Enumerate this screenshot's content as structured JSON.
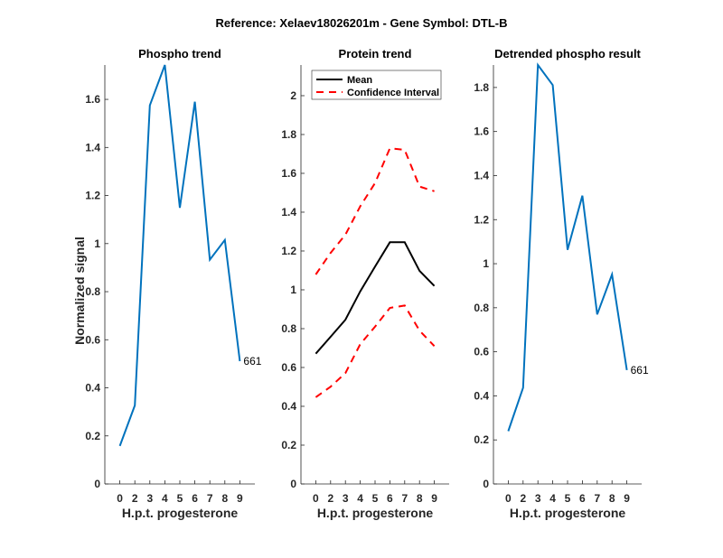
{
  "figure": {
    "suptitle": "Reference:  Xelaev18026201m - Gene Symbol:  DTL-B"
  },
  "colors": {
    "phospho_line": "#0072BD",
    "mean_line": "#000000",
    "ci_line": "#FF0000",
    "axis": "#262626"
  },
  "chart_data": [
    {
      "type": "line",
      "title": "Phospho trend",
      "xlabel": "H.p.t. progesterone",
      "ylabel": "Normalized signal",
      "categories": [
        "0",
        "2",
        "3",
        "4",
        "5",
        "6",
        "7",
        "8",
        "9"
      ],
      "xlim": [
        0,
        10
      ],
      "ylim": [
        0,
        1.743
      ],
      "yticks": [
        "0",
        "0.2",
        "0.4",
        "0.6",
        "0.8",
        "1",
        "1.2",
        "1.4",
        "1.6"
      ],
      "ytick_values": [
        0,
        0.2,
        0.4,
        0.6,
        0.8,
        1,
        1.2,
        1.4,
        1.6
      ],
      "series": [
        {
          "name": "Phospho",
          "style": "solid",
          "values": [
            0.158,
            0.327,
            1.575,
            1.743,
            1.149,
            1.59,
            0.933,
            1.015,
            0.511
          ]
        }
      ],
      "annotation": "661",
      "grid": false
    },
    {
      "type": "line",
      "title": "Protein trend",
      "xlabel": "H.p.t. progesterone",
      "ylabel": "",
      "categories": [
        "0",
        "2",
        "3",
        "4",
        "5",
        "6",
        "7",
        "8",
        "9"
      ],
      "xlim": [
        0,
        10
      ],
      "ylim": [
        0,
        2.158
      ],
      "yticks": [
        "0",
        "0.2",
        "0.4",
        "0.6",
        "0.8",
        "1",
        "1.2",
        "1.4",
        "1.6",
        "1.8",
        "2"
      ],
      "ytick_values": [
        0,
        0.2,
        0.4,
        0.6,
        0.8,
        1,
        1.2,
        1.4,
        1.6,
        1.8,
        2
      ],
      "series": [
        {
          "name": "Mean",
          "style": "solid",
          "values": [
            0.671,
            0.758,
            0.846,
            0.992,
            1.12,
            1.245,
            1.245,
            1.098,
            1.02
          ]
        },
        {
          "name": "Confidence Interval",
          "style": "dashed",
          "values": [
            1.079,
            1.19,
            1.284,
            1.43,
            1.55,
            1.729,
            1.721,
            1.532,
            1.508
          ]
        },
        {
          "name": "Confidence Interval (lower)",
          "style": "dashed",
          "values": [
            0.447,
            0.501,
            0.571,
            0.72,
            0.81,
            0.907,
            0.919,
            0.79,
            0.71
          ]
        }
      ],
      "legend": {
        "entries": [
          "Mean",
          "Confidence Interval"
        ],
        "placement": "top-left"
      },
      "grid": false
    },
    {
      "type": "line",
      "title": "Detrended phospho result",
      "xlabel": "H.p.t. progesterone",
      "ylabel": "",
      "categories": [
        "0",
        "2",
        "3",
        "4",
        "5",
        "6",
        "7",
        "8",
        "9"
      ],
      "xlim": [
        0,
        10
      ],
      "ylim": [
        0,
        1.902
      ],
      "yticks": [
        "0",
        "0.2",
        "0.4",
        "0.6",
        "0.8",
        "1",
        "1.2",
        "1.4",
        "1.6",
        "1.8"
      ],
      "ytick_values": [
        0,
        0.2,
        0.4,
        0.6,
        0.8,
        1,
        1.2,
        1.4,
        1.6,
        1.8
      ],
      "series": [
        {
          "name": "Detrended",
          "style": "solid",
          "values": [
            0.24,
            0.437,
            1.902,
            1.811,
            1.063,
            1.309,
            0.77,
            0.951,
            0.517
          ]
        }
      ],
      "annotation": "661",
      "grid": false
    }
  ]
}
